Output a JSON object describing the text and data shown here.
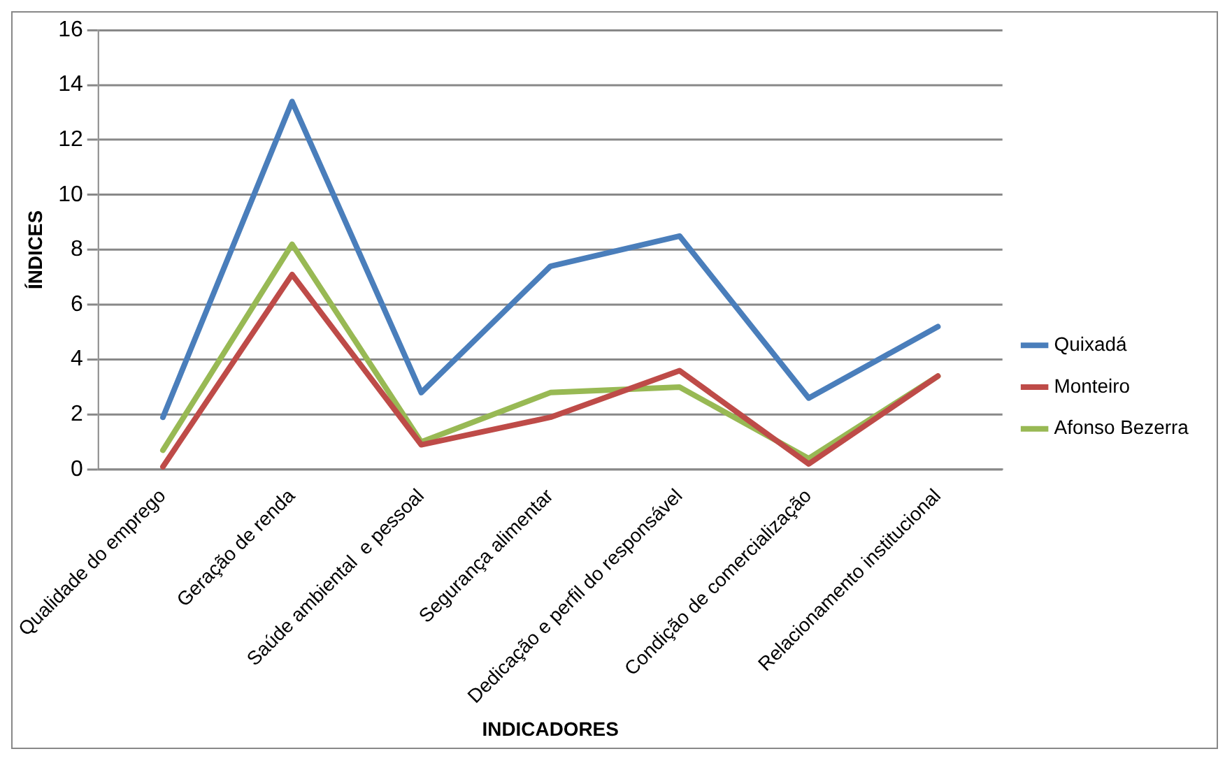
{
  "chart_data": {
    "type": "line",
    "xlabel": "INDICADORES",
    "ylabel": "ÍNDICES",
    "categories": [
      "Qualidade do emprego",
      "Geração de renda",
      "Saúde ambiental  e pessoal",
      "Segurança alimentar",
      "Dedicação e perfil do responsável",
      "Condição de comercialização",
      "Relacionamento institucional"
    ],
    "series": [
      {
        "name": "Quixadá",
        "color": "#4a7ebb",
        "values": [
          1.9,
          13.4,
          2.8,
          7.4,
          8.5,
          2.6,
          5.2
        ]
      },
      {
        "name": "Monteiro",
        "color": "#be4b48",
        "values": [
          0.1,
          7.1,
          0.9,
          1.9,
          3.6,
          0.2,
          3.4
        ]
      },
      {
        "name": "Afonso Bezerra",
        "color": "#98b954",
        "values": [
          0.7,
          8.2,
          1.0,
          2.8,
          3.0,
          0.4,
          3.4
        ]
      }
    ],
    "ylim": [
      0,
      16
    ],
    "yticks": [
      0,
      2,
      4,
      6,
      8,
      10,
      12,
      14,
      16
    ],
    "grid": "y",
    "legend": "right",
    "marker": "none",
    "line_style": "solid"
  }
}
